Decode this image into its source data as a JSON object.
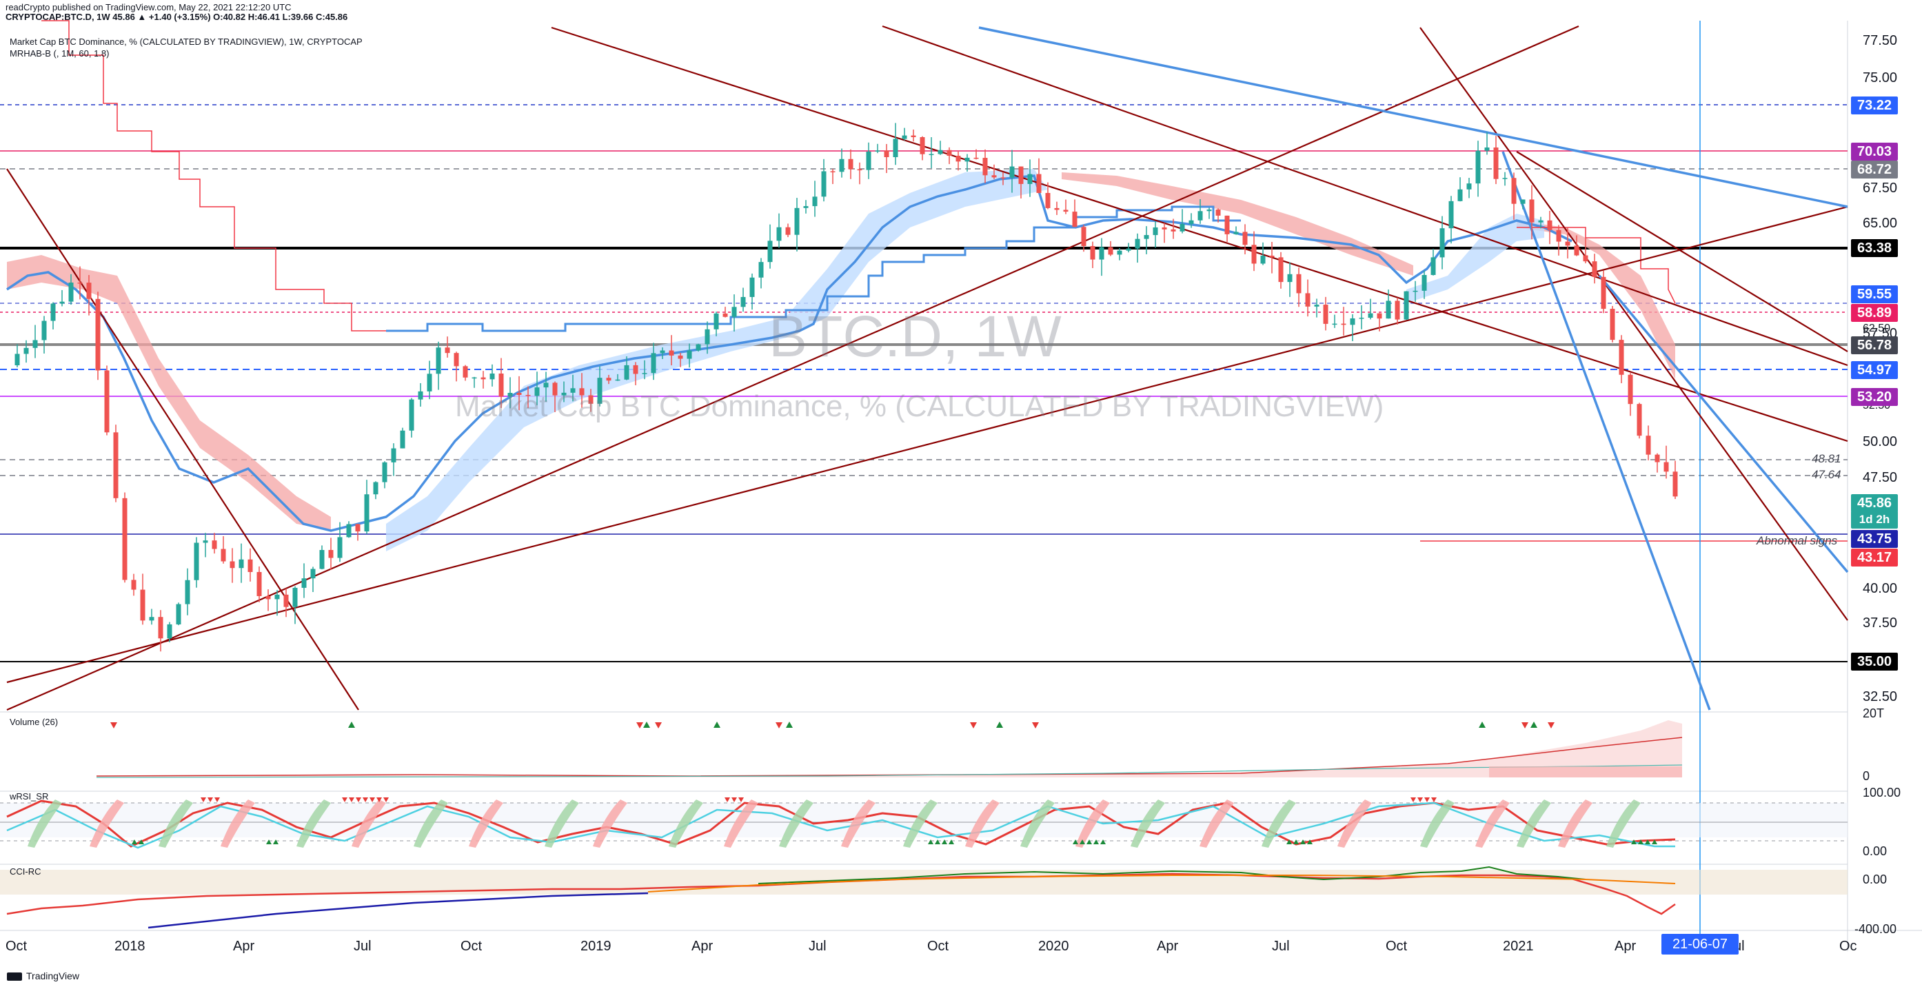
{
  "header": {
    "publisher": "readCrypto published on TradingView.com, May 22, 2021 22:12:20 UTC",
    "symbol_line": "CRYPTOCAP:BTC.D, 1W  45.86 ▲ +1.40 (+3.15%) O:40.82 H:46.41 L:39.66 C:45.86",
    "study_title": "Market Cap BTC Dominance, % (CALCULATED BY TRADINGVIEW), 1W, CRYPTOCAP",
    "indicator": "MRHAB-B (, 1M, 60, 1.8)"
  },
  "watermark": {
    "symbol": "BTC.D, 1W",
    "description": "Market Cap BTC Dominance, % (CALCULATED BY TRADINGVIEW)"
  },
  "price_axis": {
    "ticks": [
      "77.50",
      "75.00",
      "72.50",
      "67.50",
      "65.00",
      "62.50",
      "57.50",
      "52.50",
      "50.00",
      "47.50",
      "40.00",
      "37.50",
      "32.50"
    ],
    "tags": [
      {
        "label": "73.22",
        "color": "#2962ff"
      },
      {
        "label": "70.03",
        "color": "#9c27b0"
      },
      {
        "label": "68.72",
        "color": "#787b86"
      },
      {
        "label": "63.38",
        "color": "#000000"
      },
      {
        "label": "59.55",
        "color": "#2962ff"
      },
      {
        "label": "58.89",
        "color": "#e91e63"
      },
      {
        "label": "56.78",
        "color": "#434651"
      },
      {
        "label": "54.97",
        "color": "#2962ff"
      },
      {
        "label": "53.20",
        "color": "#9c27b0"
      },
      {
        "label": "45.86",
        "color": "#26a69a"
      },
      {
        "label": "1d 2h",
        "color": "#26a69a"
      },
      {
        "label": "43.75",
        "color": "#1e22aa"
      },
      {
        "label": "43.17",
        "color": "#f23645"
      },
      {
        "label": "35.00",
        "color": "#000000"
      }
    ],
    "level_notes": [
      "48.81",
      "47.64"
    ],
    "annotation": "Abnormal signs"
  },
  "time_axis": {
    "labels": [
      "Oct",
      "2018",
      "Apr",
      "Jul",
      "Oct",
      "2019",
      "Apr",
      "Jul",
      "Oct",
      "2020",
      "Apr",
      "Jul",
      "Oct",
      "2021",
      "Apr",
      "Jul",
      "Oc"
    ],
    "cursor_date": "21-06-07"
  },
  "panels": {
    "volume": {
      "title": "Volume (26)",
      "ticks": [
        "20T",
        "0"
      ]
    },
    "wrsi": {
      "title": "wRSI_SR",
      "ticks": [
        "100.00",
        "0.00"
      ]
    },
    "cci": {
      "title": "CCI-RC",
      "ticks": [
        "0.00",
        "-400.00"
      ]
    }
  },
  "footer": {
    "brand": "TradingView"
  },
  "colors": {
    "bull": "#26a69a",
    "bear": "#ef5350",
    "trend": "#8b0000",
    "blue": "#4a90e2"
  },
  "chart_data": {
    "type": "candlestick",
    "title": "Market Cap BTC Dominance, % (CALCULATED BY TRADINGVIEW)",
    "ylim": [
      31,
      79
    ],
    "approx_close_path": [
      {
        "x": "2017-10",
        "y": 55.0
      },
      {
        "x": "2017-12",
        "y": 62.0
      },
      {
        "x": "2018-01",
        "y": 40.0
      },
      {
        "x": "2018-02",
        "y": 35.5
      },
      {
        "x": "2018-03",
        "y": 43.0
      },
      {
        "x": "2018-05",
        "y": 38.5
      },
      {
        "x": "2018-07",
        "y": 44.0
      },
      {
        "x": "2018-09",
        "y": 56.0
      },
      {
        "x": "2018-11",
        "y": 53.0
      },
      {
        "x": "2019-01",
        "y": 53.0
      },
      {
        "x": "2019-04",
        "y": 57.0
      },
      {
        "x": "2019-07",
        "y": 68.0
      },
      {
        "x": "2019-09",
        "y": 70.5
      },
      {
        "x": "2019-12",
        "y": 68.5
      },
      {
        "x": "2020-02",
        "y": 63.0
      },
      {
        "x": "2020-05",
        "y": 65.5
      },
      {
        "x": "2020-08",
        "y": 58.5
      },
      {
        "x": "2020-10",
        "y": 59.0
      },
      {
        "x": "2020-12",
        "y": 70.0
      },
      {
        "x": "2021-01",
        "y": 66.0
      },
      {
        "x": "2021-03",
        "y": 61.0
      },
      {
        "x": "2021-04",
        "y": 51.0
      },
      {
        "x": "2021-05",
        "y": 45.86
      }
    ]
  }
}
